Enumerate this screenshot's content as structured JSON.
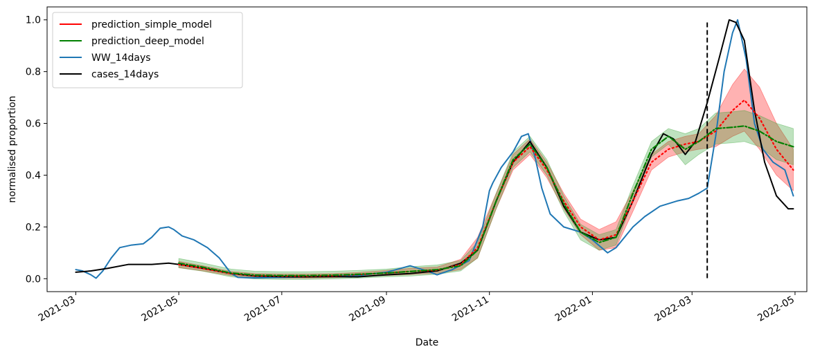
{
  "chart_data": {
    "type": "line",
    "xlabel": "Date",
    "ylabel": "normalised proportion",
    "xlim": [
      "2021-02-12",
      "2022-05-08"
    ],
    "ylim": [
      -0.05,
      1.05
    ],
    "x_ticks": [
      "2021-03",
      "2021-05",
      "2021-07",
      "2021-09",
      "2021-11",
      "2022-01",
      "2022-03",
      "2022-05"
    ],
    "y_ticks": [
      "0.0",
      "0.2",
      "0.4",
      "0.6",
      "0.8",
      "1.0"
    ],
    "grid": false,
    "legend_position": "upper-left",
    "vline": {
      "x": "2022-03-10",
      "y_range": [
        0.0,
        0.99
      ],
      "style": "dashed",
      "color": "#000000"
    },
    "series": [
      {
        "name": "prediction_simple_model",
        "color": "#ff0000",
        "style": "dotted",
        "band_color": "#ff0000",
        "points": [
          [
            "2021-05-01",
            0.055
          ],
          [
            "2021-05-15",
            0.04
          ],
          [
            "2021-06-01",
            0.02
          ],
          [
            "2021-06-15",
            0.012
          ],
          [
            "2021-07-01",
            0.01
          ],
          [
            "2021-07-15",
            0.01
          ],
          [
            "2021-08-01",
            0.012
          ],
          [
            "2021-08-15",
            0.016
          ],
          [
            "2021-09-01",
            0.022
          ],
          [
            "2021-09-15",
            0.028
          ],
          [
            "2021-10-01",
            0.033
          ],
          [
            "2021-10-15",
            0.055
          ],
          [
            "2021-10-25",
            0.12
          ],
          [
            "2021-11-05",
            0.3
          ],
          [
            "2021-11-15",
            0.45
          ],
          [
            "2021-11-25",
            0.51
          ],
          [
            "2021-12-05",
            0.42
          ],
          [
            "2021-12-15",
            0.3
          ],
          [
            "2021-12-25",
            0.2
          ],
          [
            "2022-01-05",
            0.15
          ],
          [
            "2022-01-15",
            0.17
          ],
          [
            "2022-01-25",
            0.3
          ],
          [
            "2022-02-05",
            0.45
          ],
          [
            "2022-02-15",
            0.5
          ],
          [
            "2022-02-25",
            0.52
          ],
          [
            "2022-03-05",
            0.53
          ],
          [
            "2022-03-15",
            0.57
          ],
          [
            "2022-03-25",
            0.65
          ],
          [
            "2022-04-01",
            0.69
          ],
          [
            "2022-04-10",
            0.62
          ],
          [
            "2022-04-20",
            0.5
          ],
          [
            "2022-04-30",
            0.42
          ]
        ],
        "band_half_width": [
          0.012,
          0.01,
          0.008,
          0.008,
          0.008,
          0.008,
          0.008,
          0.008,
          0.01,
          0.012,
          0.012,
          0.02,
          0.04,
          0.03,
          0.03,
          0.03,
          0.03,
          0.03,
          0.03,
          0.04,
          0.05,
          0.04,
          0.03,
          0.03,
          0.03,
          0.03,
          0.06,
          0.1,
          0.12,
          0.12,
          0.1,
          0.08
        ]
      },
      {
        "name": "prediction_deep_model",
        "color": "#008000",
        "style": "dashdot",
        "band_color": "#2ca02c",
        "points": [
          [
            "2021-05-01",
            0.06
          ],
          [
            "2021-05-15",
            0.045
          ],
          [
            "2021-06-01",
            0.022
          ],
          [
            "2021-06-15",
            0.014
          ],
          [
            "2021-07-01",
            0.012
          ],
          [
            "2021-07-15",
            0.012
          ],
          [
            "2021-08-01",
            0.014
          ],
          [
            "2021-08-15",
            0.017
          ],
          [
            "2021-09-01",
            0.022
          ],
          [
            "2021-09-15",
            0.028
          ],
          [
            "2021-10-01",
            0.035
          ],
          [
            "2021-10-15",
            0.05
          ],
          [
            "2021-10-25",
            0.11
          ],
          [
            "2021-11-05",
            0.3
          ],
          [
            "2021-11-15",
            0.46
          ],
          [
            "2021-11-25",
            0.52
          ],
          [
            "2021-12-05",
            0.43
          ],
          [
            "2021-12-15",
            0.29
          ],
          [
            "2021-12-25",
            0.18
          ],
          [
            "2022-01-05",
            0.14
          ],
          [
            "2022-01-15",
            0.16
          ],
          [
            "2022-01-25",
            0.33
          ],
          [
            "2022-02-05",
            0.5
          ],
          [
            "2022-02-15",
            0.55
          ],
          [
            "2022-02-25",
            0.5
          ],
          [
            "2022-03-05",
            0.53
          ],
          [
            "2022-03-15",
            0.58
          ],
          [
            "2022-03-25",
            0.585
          ],
          [
            "2022-04-01",
            0.59
          ],
          [
            "2022-04-10",
            0.57
          ],
          [
            "2022-04-20",
            0.53
          ],
          [
            "2022-04-30",
            0.51
          ]
        ],
        "band_half_width": [
          0.018,
          0.016,
          0.015,
          0.015,
          0.015,
          0.015,
          0.015,
          0.015,
          0.015,
          0.018,
          0.018,
          0.02,
          0.03,
          0.03,
          0.03,
          0.03,
          0.03,
          0.03,
          0.03,
          0.03,
          0.03,
          0.03,
          0.03,
          0.03,
          0.06,
          0.05,
          0.06,
          0.06,
          0.06,
          0.06,
          0.07,
          0.07
        ]
      },
      {
        "name": "WW_14days",
        "color": "#1f77b4",
        "style": "solid",
        "points": [
          [
            "2021-03-01",
            0.035
          ],
          [
            "2021-03-05",
            0.03
          ],
          [
            "2021-03-10",
            0.015
          ],
          [
            "2021-03-13",
            0.002
          ],
          [
            "2021-03-17",
            0.03
          ],
          [
            "2021-03-22",
            0.08
          ],
          [
            "2021-03-27",
            0.12
          ],
          [
            "2021-04-03",
            0.13
          ],
          [
            "2021-04-10",
            0.135
          ],
          [
            "2021-04-15",
            0.16
          ],
          [
            "2021-04-20",
            0.195
          ],
          [
            "2021-04-25",
            0.2
          ],
          [
            "2021-04-28",
            0.19
          ],
          [
            "2021-05-03",
            0.165
          ],
          [
            "2021-05-10",
            0.15
          ],
          [
            "2021-05-18",
            0.12
          ],
          [
            "2021-05-25",
            0.08
          ],
          [
            "2021-06-01",
            0.02
          ],
          [
            "2021-06-05",
            0.005
          ],
          [
            "2021-06-15",
            0.003
          ],
          [
            "2021-07-01",
            0.005
          ],
          [
            "2021-08-01",
            0.01
          ],
          [
            "2021-08-15",
            0.012
          ],
          [
            "2021-09-01",
            0.025
          ],
          [
            "2021-09-15",
            0.05
          ],
          [
            "2021-09-25",
            0.03
          ],
          [
            "2021-10-01",
            0.015
          ],
          [
            "2021-10-10",
            0.035
          ],
          [
            "2021-10-20",
            0.07
          ],
          [
            "2021-10-28",
            0.2
          ],
          [
            "2021-11-01",
            0.34
          ],
          [
            "2021-11-03",
            0.37
          ],
          [
            "2021-11-08",
            0.43
          ],
          [
            "2021-11-15",
            0.49
          ],
          [
            "2021-11-20",
            0.55
          ],
          [
            "2021-11-24",
            0.56
          ],
          [
            "2021-11-28",
            0.47
          ],
          [
            "2021-12-02",
            0.35
          ],
          [
            "2021-12-07",
            0.25
          ],
          [
            "2021-12-15",
            0.2
          ],
          [
            "2021-12-25",
            0.18
          ],
          [
            "2022-01-01",
            0.15
          ],
          [
            "2022-01-10",
            0.1
          ],
          [
            "2022-01-15",
            0.12
          ],
          [
            "2022-01-25",
            0.2
          ],
          [
            "2022-02-01",
            0.24
          ],
          [
            "2022-02-10",
            0.28
          ],
          [
            "2022-02-20",
            0.3
          ],
          [
            "2022-02-27",
            0.31
          ],
          [
            "2022-03-05",
            0.33
          ],
          [
            "2022-03-10",
            0.35
          ],
          [
            "2022-03-15",
            0.55
          ],
          [
            "2022-03-20",
            0.8
          ],
          [
            "2022-03-25",
            0.95
          ],
          [
            "2022-03-28",
            1.0
          ],
          [
            "2022-04-02",
            0.85
          ],
          [
            "2022-04-07",
            0.6
          ],
          [
            "2022-04-12",
            0.5
          ],
          [
            "2022-04-18",
            0.45
          ],
          [
            "2022-04-25",
            0.42
          ],
          [
            "2022-04-30",
            0.32
          ]
        ]
      },
      {
        "name": "cases_14days",
        "color": "#000000",
        "style": "solid",
        "points": [
          [
            "2021-03-01",
            0.025
          ],
          [
            "2021-03-10",
            0.03
          ],
          [
            "2021-03-20",
            0.04
          ],
          [
            "2021-04-01",
            0.055
          ],
          [
            "2021-04-15",
            0.055
          ],
          [
            "2021-04-25",
            0.06
          ],
          [
            "2021-05-01",
            0.055
          ],
          [
            "2021-05-15",
            0.04
          ],
          [
            "2021-06-01",
            0.02
          ],
          [
            "2021-06-15",
            0.01
          ],
          [
            "2021-07-01",
            0.008
          ],
          [
            "2021-07-15",
            0.007
          ],
          [
            "2021-08-01",
            0.008
          ],
          [
            "2021-08-15",
            0.007
          ],
          [
            "2021-09-01",
            0.015
          ],
          [
            "2021-09-15",
            0.02
          ],
          [
            "2021-10-01",
            0.03
          ],
          [
            "2021-10-15",
            0.06
          ],
          [
            "2021-10-25",
            0.11
          ],
          [
            "2021-11-05",
            0.3
          ],
          [
            "2021-11-15",
            0.45
          ],
          [
            "2021-11-25",
            0.53
          ],
          [
            "2021-12-05",
            0.43
          ],
          [
            "2021-12-15",
            0.28
          ],
          [
            "2021-12-25",
            0.18
          ],
          [
            "2022-01-05",
            0.15
          ],
          [
            "2022-01-15",
            0.16
          ],
          [
            "2022-01-25",
            0.3
          ],
          [
            "2022-02-05",
            0.48
          ],
          [
            "2022-02-12",
            0.56
          ],
          [
            "2022-02-18",
            0.54
          ],
          [
            "2022-02-25",
            0.48
          ],
          [
            "2022-03-03",
            0.53
          ],
          [
            "2022-03-10",
            0.68
          ],
          [
            "2022-03-17",
            0.85
          ],
          [
            "2022-03-23",
            1.0
          ],
          [
            "2022-03-27",
            0.99
          ],
          [
            "2022-04-01",
            0.92
          ],
          [
            "2022-04-07",
            0.65
          ],
          [
            "2022-04-13",
            0.45
          ],
          [
            "2022-04-20",
            0.32
          ],
          [
            "2022-04-27",
            0.27
          ],
          [
            "2022-04-30",
            0.27
          ]
        ]
      }
    ]
  }
}
